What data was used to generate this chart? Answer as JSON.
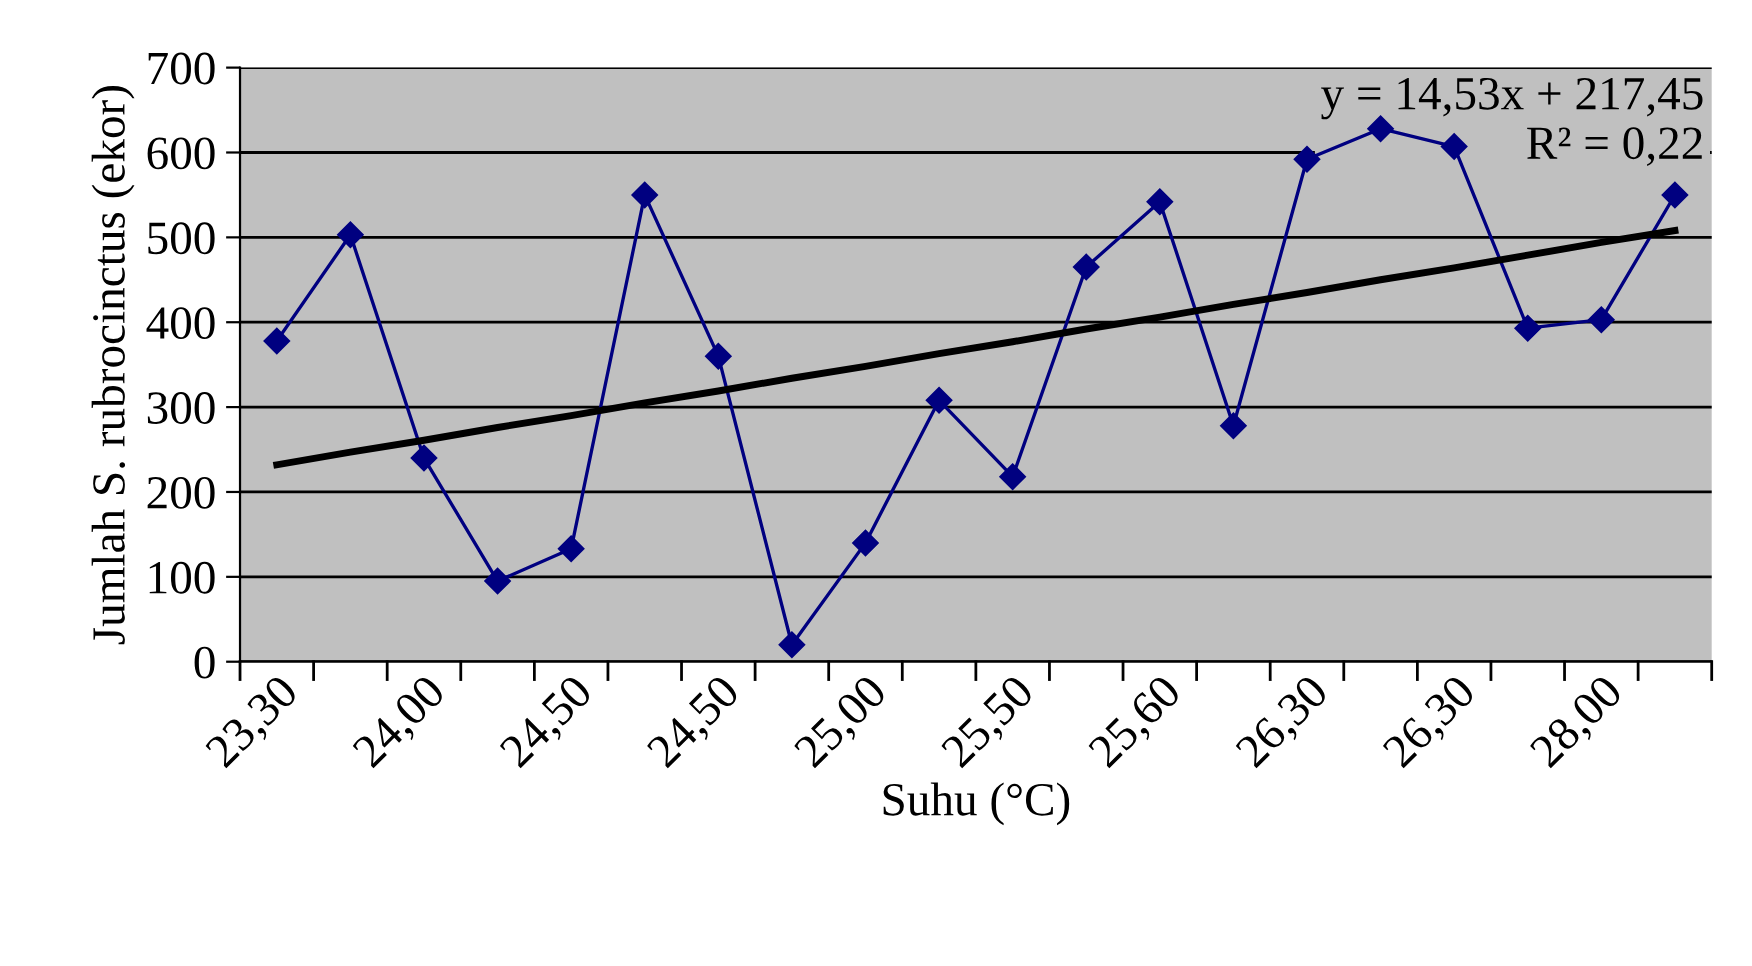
{
  "chart_data": {
    "type": "line",
    "xlabel": "Suhu (°C)",
    "ylabel": "Jumlah S. rubrocinctus (ekor)",
    "categories": [
      "23,30",
      null,
      "24,00",
      null,
      "24,50",
      null,
      "24,50",
      null,
      "25,00",
      null,
      "25,50",
      null,
      "25,60",
      null,
      "26,30",
      null,
      "26,30",
      null,
      "28,00",
      null
    ],
    "series": [
      {
        "color": "#000080",
        "marker": "diamond",
        "values": [
          378,
          503,
          240,
          95,
          133,
          550,
          360,
          20,
          140,
          308,
          218,
          465,
          542,
          278,
          592,
          628,
          607,
          393,
          403,
          550
        ]
      },
      {
        "type": "line",
        "color": "#000000",
        "marker": "none",
        "values": [
          232,
          247,
          261,
          276,
          290,
          305,
          319,
          334,
          348,
          363,
          377,
          392,
          406,
          421,
          435,
          450,
          464,
          479,
          494,
          508
        ]
      }
    ],
    "ylim": [
      0,
      700
    ],
    "yticks": [
      0,
      100,
      200,
      300,
      400,
      500,
      600,
      700
    ],
    "grid": "y",
    "legend": false,
    "annotations": [
      "y = 14,53x + 217,45\nR² = 0,22"
    ]
  }
}
